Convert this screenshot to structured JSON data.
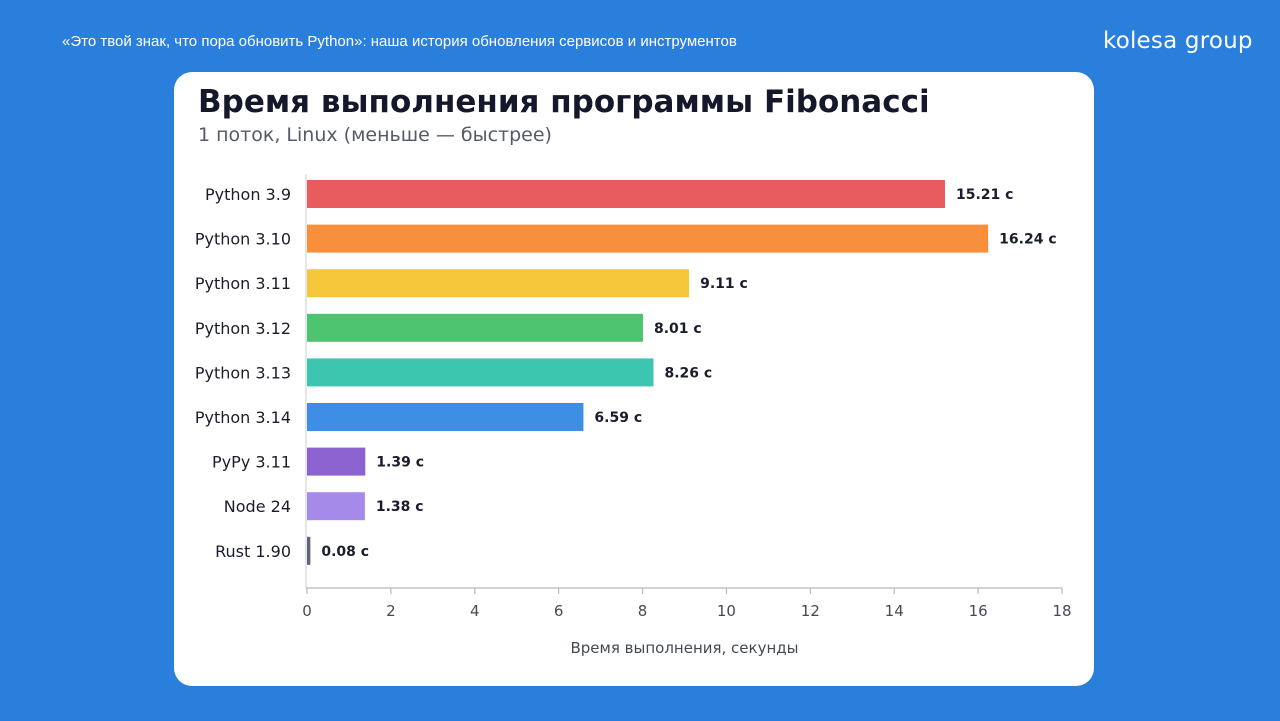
{
  "header": {
    "caption": "«Это твой знак, что пора обновить Python»: наша история обновления сервисов и инструментов",
    "brand": "kolesa group"
  },
  "chart_data": {
    "type": "bar",
    "orientation": "horizontal",
    "title": "Время выполнения программы Fibonacci",
    "subtitle": "1 поток, Linux (меньше — быстрее)",
    "xlabel": "Время выполнения, секунды",
    "ylabel": "",
    "xlim": [
      0,
      18
    ],
    "xticks": [
      0,
      2,
      4,
      6,
      8,
      10,
      12,
      14,
      16,
      18
    ],
    "grid": false,
    "categories": [
      "Python 3.9",
      "Python 3.10",
      "Python 3.11",
      "Python 3.12",
      "Python 3.13",
      "Python 3.14",
      "PyPy 3.11",
      "Node 24",
      "Rust 1.90"
    ],
    "values": [
      15.21,
      16.24,
      9.11,
      8.01,
      8.26,
      6.59,
      1.39,
      1.38,
      0.08
    ],
    "value_labels": [
      "15.21 с",
      "16.24 с",
      "9.11 с",
      "8.01 с",
      "8.26 с",
      "6.59 с",
      "1.39 с",
      "1.38 с",
      "0.08 с"
    ],
    "colors": [
      "#e85c5f",
      "#f88f3c",
      "#f6c73b",
      "#4dc46f",
      "#3cc6b0",
      "#3f8ee6",
      "#8c62d0",
      "#a58ae9",
      "#5f6478"
    ]
  }
}
